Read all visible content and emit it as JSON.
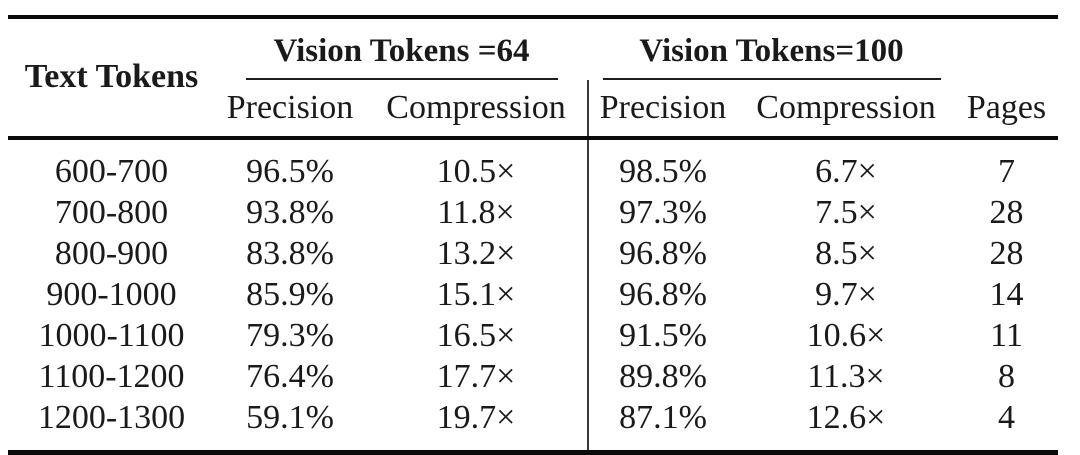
{
  "table": {
    "row_header": "Text Tokens",
    "groups": [
      {
        "label": "Vision Tokens =64"
      },
      {
        "label": "Vision Tokens=100"
      }
    ],
    "sub_headers": [
      "Precision",
      "Compression",
      "Precision",
      "Compression",
      "Pages"
    ],
    "rows": [
      [
        "600-700",
        "96.5%",
        "10.5×",
        "98.5%",
        "6.7×",
        "7"
      ],
      [
        "700-800",
        "93.8%",
        "11.8×",
        "97.3%",
        "7.5×",
        "28"
      ],
      [
        "800-900",
        "83.8%",
        "13.2×",
        "96.8%",
        "8.5×",
        "28"
      ],
      [
        "900-1000",
        "85.9%",
        "15.1×",
        "96.8%",
        "9.7×",
        "14"
      ],
      [
        "1000-1100",
        "79.3%",
        "16.5×",
        "91.5%",
        "10.6×",
        "11"
      ],
      [
        "1100-1200",
        "76.4%",
        "17.7×",
        "89.8%",
        "11.3×",
        "8"
      ],
      [
        "1200-1300",
        "59.1%",
        "19.7×",
        "87.1%",
        "12.6×",
        "4"
      ]
    ],
    "colors": {
      "text": "#1a1a1a",
      "rule": "#0a0a0a",
      "divider": "#3a3a3a"
    }
  }
}
